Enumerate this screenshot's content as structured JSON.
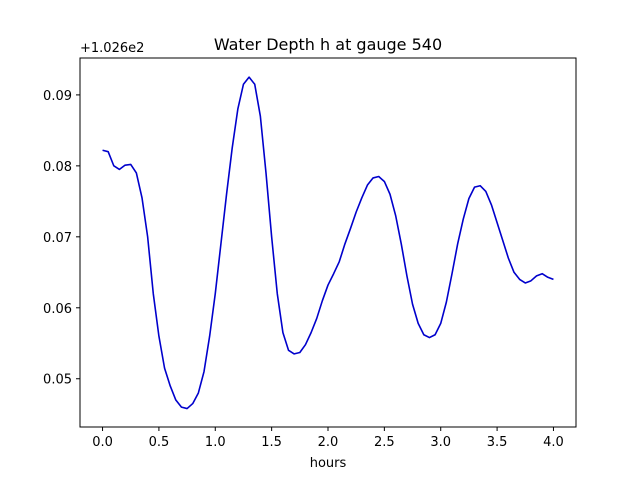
{
  "chart_data": {
    "type": "line",
    "title": "Water Depth h at gauge 540",
    "xlabel": "hours",
    "ylabel": "",
    "offset_label": "+1.026e2",
    "xlim": [
      -0.2,
      4.2
    ],
    "ylim": [
      0.0432,
      0.0952
    ],
    "xticks": [
      0.0,
      0.5,
      1.0,
      1.5,
      2.0,
      2.5,
      3.0,
      3.5,
      4.0
    ],
    "xtick_labels": [
      "0.0",
      "0.5",
      "1.0",
      "1.5",
      "2.0",
      "2.5",
      "3.0",
      "3.5",
      "4.0"
    ],
    "yticks": [
      0.05,
      0.06,
      0.07,
      0.08,
      0.09
    ],
    "ytick_labels": [
      "0.05",
      "0.06",
      "0.07",
      "0.08",
      "0.09"
    ],
    "grid": false,
    "series": [
      {
        "color": "#0000cc",
        "x": [
          0.0,
          0.05,
          0.1,
          0.15,
          0.2,
          0.25,
          0.3,
          0.35,
          0.4,
          0.45,
          0.5,
          0.55,
          0.6,
          0.65,
          0.7,
          0.75,
          0.8,
          0.85,
          0.9,
          0.95,
          1.0,
          1.05,
          1.1,
          1.15,
          1.2,
          1.25,
          1.3,
          1.35,
          1.4,
          1.45,
          1.5,
          1.55,
          1.6,
          1.65,
          1.7,
          1.75,
          1.8,
          1.85,
          1.9,
          1.95,
          2.0,
          2.05,
          2.1,
          2.15,
          2.2,
          2.25,
          2.3,
          2.35,
          2.4,
          2.45,
          2.5,
          2.55,
          2.6,
          2.65,
          2.7,
          2.75,
          2.8,
          2.85,
          2.9,
          2.95,
          3.0,
          3.05,
          3.1,
          3.15,
          3.2,
          3.25,
          3.3,
          3.35,
          3.4,
          3.45,
          3.5,
          3.55,
          3.6,
          3.65,
          3.7,
          3.75,
          3.8,
          3.85,
          3.9,
          3.95,
          4.0
        ],
        "y": [
          0.0822,
          0.082,
          0.08,
          0.0795,
          0.0801,
          0.0802,
          0.079,
          0.0755,
          0.07,
          0.062,
          0.056,
          0.0515,
          0.049,
          0.047,
          0.046,
          0.0458,
          0.0465,
          0.048,
          0.051,
          0.056,
          0.062,
          0.069,
          0.076,
          0.0825,
          0.088,
          0.0915,
          0.0925,
          0.0915,
          0.087,
          0.079,
          0.07,
          0.062,
          0.0565,
          0.054,
          0.0535,
          0.0537,
          0.0548,
          0.0565,
          0.0585,
          0.061,
          0.0632,
          0.0648,
          0.0665,
          0.069,
          0.0712,
          0.0735,
          0.0755,
          0.0773,
          0.0783,
          0.0785,
          0.0778,
          0.076,
          0.073,
          0.069,
          0.0645,
          0.0605,
          0.0578,
          0.0562,
          0.0558,
          0.0562,
          0.0578,
          0.0608,
          0.0648,
          0.069,
          0.0725,
          0.0754,
          0.077,
          0.0772,
          0.0764,
          0.0745,
          0.072,
          0.0695,
          0.067,
          0.065,
          0.064,
          0.0635,
          0.0638,
          0.0645,
          0.0648,
          0.0643,
          0.064
        ]
      }
    ]
  }
}
